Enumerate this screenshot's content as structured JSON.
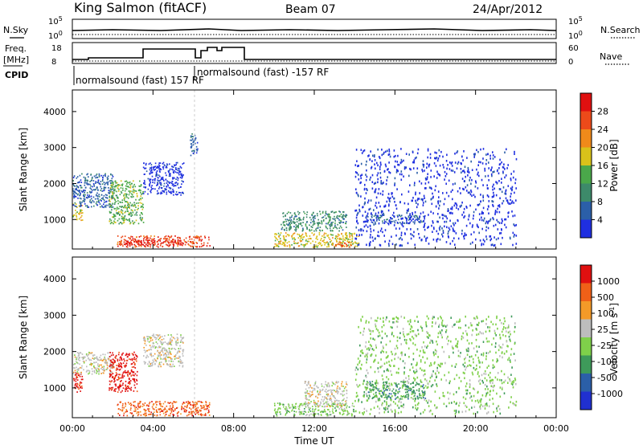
{
  "header": {
    "station": "King Salmon (fitACF)",
    "beam": "Beam 07",
    "date": "24/Apr/2012"
  },
  "labels": {
    "nsky": "N.Sky",
    "freq": "Freq.",
    "freq_unit": "[MHz]",
    "cpid": "CPID",
    "nsearch": "N.Search",
    "nave": "Nave",
    "sky_tick_hi": "10^5",
    "sky_tick_lo": "10^0",
    "search_tick_hi": "10^5",
    "search_tick_lo": "10^0",
    "freq_tick_hi": "18",
    "freq_tick_lo": "8",
    "nave_tick_hi": "60",
    "nave_tick_lo": "0",
    "cpid_1": "normalsound (fast) 157 RF",
    "cpid_2": "normalsound (fast) -157 RF"
  },
  "colors": {
    "power": [
      "#1f2fe0",
      "#2b5fa8",
      "#3d8a6a",
      "#4aa84a",
      "#d9c21a",
      "#f08a1a",
      "#ec4a1a",
      "#e01010"
    ],
    "velocity": [
      "#e01010",
      "#f06018",
      "#f49a28",
      "#bdbdbd",
      "#7fd04a",
      "#3e9a5a",
      "#2b5fa8",
      "#2030d0"
    ]
  },
  "chart_data": [
    {
      "type": "heatmap",
      "title": "",
      "xlabel": "",
      "ylabel": "Slant Range [km]",
      "xlim": [
        0,
        24
      ],
      "ylim": [
        180,
        4600
      ],
      "xticks": [
        "00:00",
        "04:00",
        "08:00",
        "12:00",
        "16:00",
        "20:00",
        "00:00"
      ],
      "yticks": [
        "1000",
        "2000",
        "3000",
        "4000"
      ],
      "colorbar_label": "Power [dB]",
      "colorbar_ticks": [
        "4",
        "8",
        "12",
        "16",
        "20",
        "24",
        "28"
      ],
      "colorbar_range": [
        0,
        30
      ],
      "regions": [
        {
          "x": [
            0.0,
            0.5
          ],
          "y": [
            1000,
            1450
          ],
          "level": 4
        },
        {
          "x": [
            0.0,
            2.0
          ],
          "y": [
            1350,
            2300
          ],
          "level": 1
        },
        {
          "x": [
            1.8,
            3.5
          ],
          "y": [
            900,
            2100
          ],
          "level": 3
        },
        {
          "x": [
            2.2,
            6.8
          ],
          "y": [
            250,
            560
          ],
          "level": 6
        },
        {
          "x": [
            2.5,
            5.5
          ],
          "y": [
            300,
            450
          ],
          "level": 7
        },
        {
          "x": [
            3.5,
            5.5
          ],
          "y": [
            1700,
            2600
          ],
          "level": 0
        },
        {
          "x": [
            5.8,
            6.2
          ],
          "y": [
            2800,
            3400
          ],
          "level": 1
        },
        {
          "x": [
            10.3,
            13.6
          ],
          "y": [
            700,
            1250
          ],
          "level": 2
        },
        {
          "x": [
            10.0,
            14.2
          ],
          "y": [
            250,
            650
          ],
          "level": 4
        },
        {
          "x": [
            13.0,
            13.8
          ],
          "y": [
            250,
            400
          ],
          "level": 6
        },
        {
          "x": [
            14.5,
            17.5
          ],
          "y": [
            900,
            1150
          ],
          "level": 1
        },
        {
          "x": [
            14.0,
            22.0
          ],
          "y": [
            300,
            3000
          ],
          "level": 0
        }
      ]
    },
    {
      "type": "heatmap",
      "title": "",
      "xlabel": "Time UT",
      "ylabel": "Slant Range [km]",
      "xlim": [
        0,
        24
      ],
      "ylim": [
        180,
        4600
      ],
      "xticks": [
        "00:00",
        "04:00",
        "08:00",
        "12:00",
        "16:00",
        "20:00",
        "00:00"
      ],
      "yticks": [
        "1000",
        "2000",
        "3000",
        "4000"
      ],
      "colorbar_label": "Velocity [m s^-1]",
      "colorbar_ticks": [
        "1000",
        "500",
        "100",
        "25",
        "-25",
        "-100",
        "-500",
        "-1000"
      ],
      "colorbar_range": [
        -1000,
        1000
      ],
      "regions": [
        {
          "x": [
            0.0,
            0.5
          ],
          "y": [
            900,
            1450
          ],
          "level": 0
        },
        {
          "x": [
            0.0,
            2.0
          ],
          "y": [
            1400,
            2000
          ],
          "level": 3
        },
        {
          "x": [
            1.8,
            3.2
          ],
          "y": [
            900,
            2000
          ],
          "level": 0
        },
        {
          "x": [
            2.2,
            6.8
          ],
          "y": [
            250,
            650
          ],
          "level": 1
        },
        {
          "x": [
            3.5,
            5.5
          ],
          "y": [
            1600,
            2500
          ],
          "level": 3
        },
        {
          "x": [
            10.0,
            14.0
          ],
          "y": [
            250,
            600
          ],
          "level": 4
        },
        {
          "x": [
            11.5,
            13.6
          ],
          "y": [
            500,
            1200
          ],
          "level": 3
        },
        {
          "x": [
            14.5,
            17.5
          ],
          "y": [
            700,
            1200
          ],
          "level": 5
        },
        {
          "x": [
            14.0,
            22.0
          ],
          "y": [
            300,
            3000
          ],
          "level": 4
        }
      ]
    }
  ]
}
